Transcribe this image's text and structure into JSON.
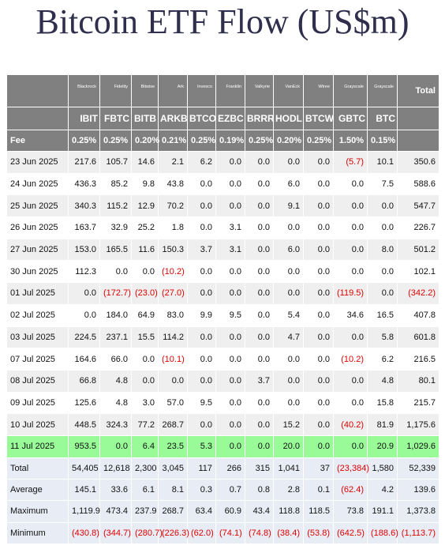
{
  "header": {
    "title": "Bitcoin ETF Flow (US$m)"
  },
  "table": {
    "issuers": [
      "Blackrock",
      "Fidelity",
      "Bitwise",
      "Ark",
      "Invesco",
      "Franklin",
      "Valkyrie",
      "VanEck",
      "Wtree",
      "Grayscale",
      "Grayscale"
    ],
    "total_label": "Total",
    "tickers": [
      "IBIT",
      "FBTC",
      "BITB",
      "ARKB",
      "BTCO",
      "EZBC",
      "BRRR",
      "HODL",
      "BTCW",
      "GBTC",
      "BTC"
    ],
    "fee": {
      "label": "Fee",
      "values": [
        "0.25%",
        "0.25%",
        "0.20%",
        "0.21%",
        "0.25%",
        "0.19%",
        "0.25%",
        "0.20%",
        "0.25%",
        "1.50%",
        "0.15%"
      ]
    },
    "rows": [
      [
        "23 Jun 2025",
        "217.6",
        "105.7",
        "14.6",
        "2.1",
        "6.2",
        "0.0",
        "0.0",
        "0.0",
        "0.0",
        "(5.7)",
        "10.1",
        "350.6"
      ],
      [
        "24 Jun 2025",
        "436.3",
        "85.2",
        "9.8",
        "43.8",
        "0.0",
        "0.0",
        "0.0",
        "6.0",
        "0.0",
        "0.0",
        "7.5",
        "588.6"
      ],
      [
        "25 Jun 2025",
        "340.3",
        "115.2",
        "12.9",
        "70.2",
        "0.0",
        "0.0",
        "0.0",
        "9.1",
        "0.0",
        "0.0",
        "0.0",
        "547.7"
      ],
      [
        "26 Jun 2025",
        "163.7",
        "32.9",
        "25.2",
        "1.8",
        "0.0",
        "3.1",
        "0.0",
        "0.0",
        "0.0",
        "0.0",
        "0.0",
        "226.7"
      ],
      [
        "27 Jun 2025",
        "153.0",
        "165.5",
        "11.6",
        "150.3",
        "3.7",
        "3.1",
        "0.0",
        "6.0",
        "0.0",
        "0.0",
        "8.0",
        "501.2"
      ],
      [
        "30 Jun 2025",
        "112.3",
        "0.0",
        "0.0",
        "(10.2)",
        "0.0",
        "0.0",
        "0.0",
        "0.0",
        "0.0",
        "0.0",
        "0.0",
        "102.1"
      ],
      [
        "01 Jul 2025",
        "0.0",
        "(172.7)",
        "(23.0)",
        "(27.0)",
        "0.0",
        "0.0",
        "0.0",
        "0.0",
        "0.0",
        "(119.5)",
        "0.0",
        "(342.2)"
      ],
      [
        "02 Jul 2025",
        "0.0",
        "184.0",
        "64.9",
        "83.0",
        "9.9",
        "9.5",
        "0.0",
        "5.4",
        "0.0",
        "34.6",
        "16.5",
        "407.8"
      ],
      [
        "03 Jul 2025",
        "224.5",
        "237.1",
        "15.5",
        "114.2",
        "0.0",
        "0.0",
        "0.0",
        "4.7",
        "0.0",
        "0.0",
        "5.8",
        "601.8"
      ],
      [
        "07 Jul 2025",
        "164.6",
        "66.0",
        "0.0",
        "(10.1)",
        "0.0",
        "0.0",
        "0.0",
        "0.0",
        "0.0",
        "(10.2)",
        "6.2",
        "216.5"
      ],
      [
        "08 Jul 2025",
        "66.8",
        "4.8",
        "0.0",
        "0.0",
        "0.0",
        "0.0",
        "3.7",
        "0.0",
        "0.0",
        "0.0",
        "4.8",
        "80.1"
      ],
      [
        "09 Jul 2025",
        "125.6",
        "4.8",
        "3.0",
        "57.0",
        "9.5",
        "0.0",
        "0.0",
        "0.0",
        "0.0",
        "0.0",
        "15.8",
        "215.7"
      ],
      [
        "10 Jul 2025",
        "448.5",
        "324.3",
        "77.2",
        "268.7",
        "0.0",
        "0.0",
        "0.0",
        "15.2",
        "0.0",
        "(40.2)",
        "81.9",
        "1,175.6"
      ],
      [
        "11 Jul 2025",
        "953.5",
        "0.0",
        "6.4",
        "23.5",
        "5.3",
        "0.0",
        "0.0",
        "20.0",
        "0.0",
        "0.0",
        "20.9",
        "1,029.6"
      ]
    ],
    "summary": [
      [
        "Total",
        "54,405",
        "12,618",
        "2,300",
        "3,045",
        "117",
        "266",
        "315",
        "1,041",
        "37",
        "(23,384)",
        "1,580",
        "52,339"
      ],
      [
        "Average",
        "145.1",
        "33.6",
        "6.1",
        "8.1",
        "0.3",
        "0.7",
        "0.8",
        "2.8",
        "0.1",
        "(62.4)",
        "4.2",
        "139.6"
      ],
      [
        "Maximum",
        "1,119.9",
        "473.4",
        "237.9",
        "268.7",
        "63.4",
        "60.9",
        "43.4",
        "118.8",
        "118.5",
        "73.8",
        "191.1",
        "1,373.8"
      ],
      [
        "Minimum",
        "(430.8)",
        "(344.7)",
        "(280.7)",
        "(226.3)",
        "(62.0)",
        "(74.1)",
        "(74.8)",
        "(38.4)",
        "(53.8)",
        "(642.5)",
        "(188.6)",
        "(1,113.7)"
      ]
    ]
  }
}
